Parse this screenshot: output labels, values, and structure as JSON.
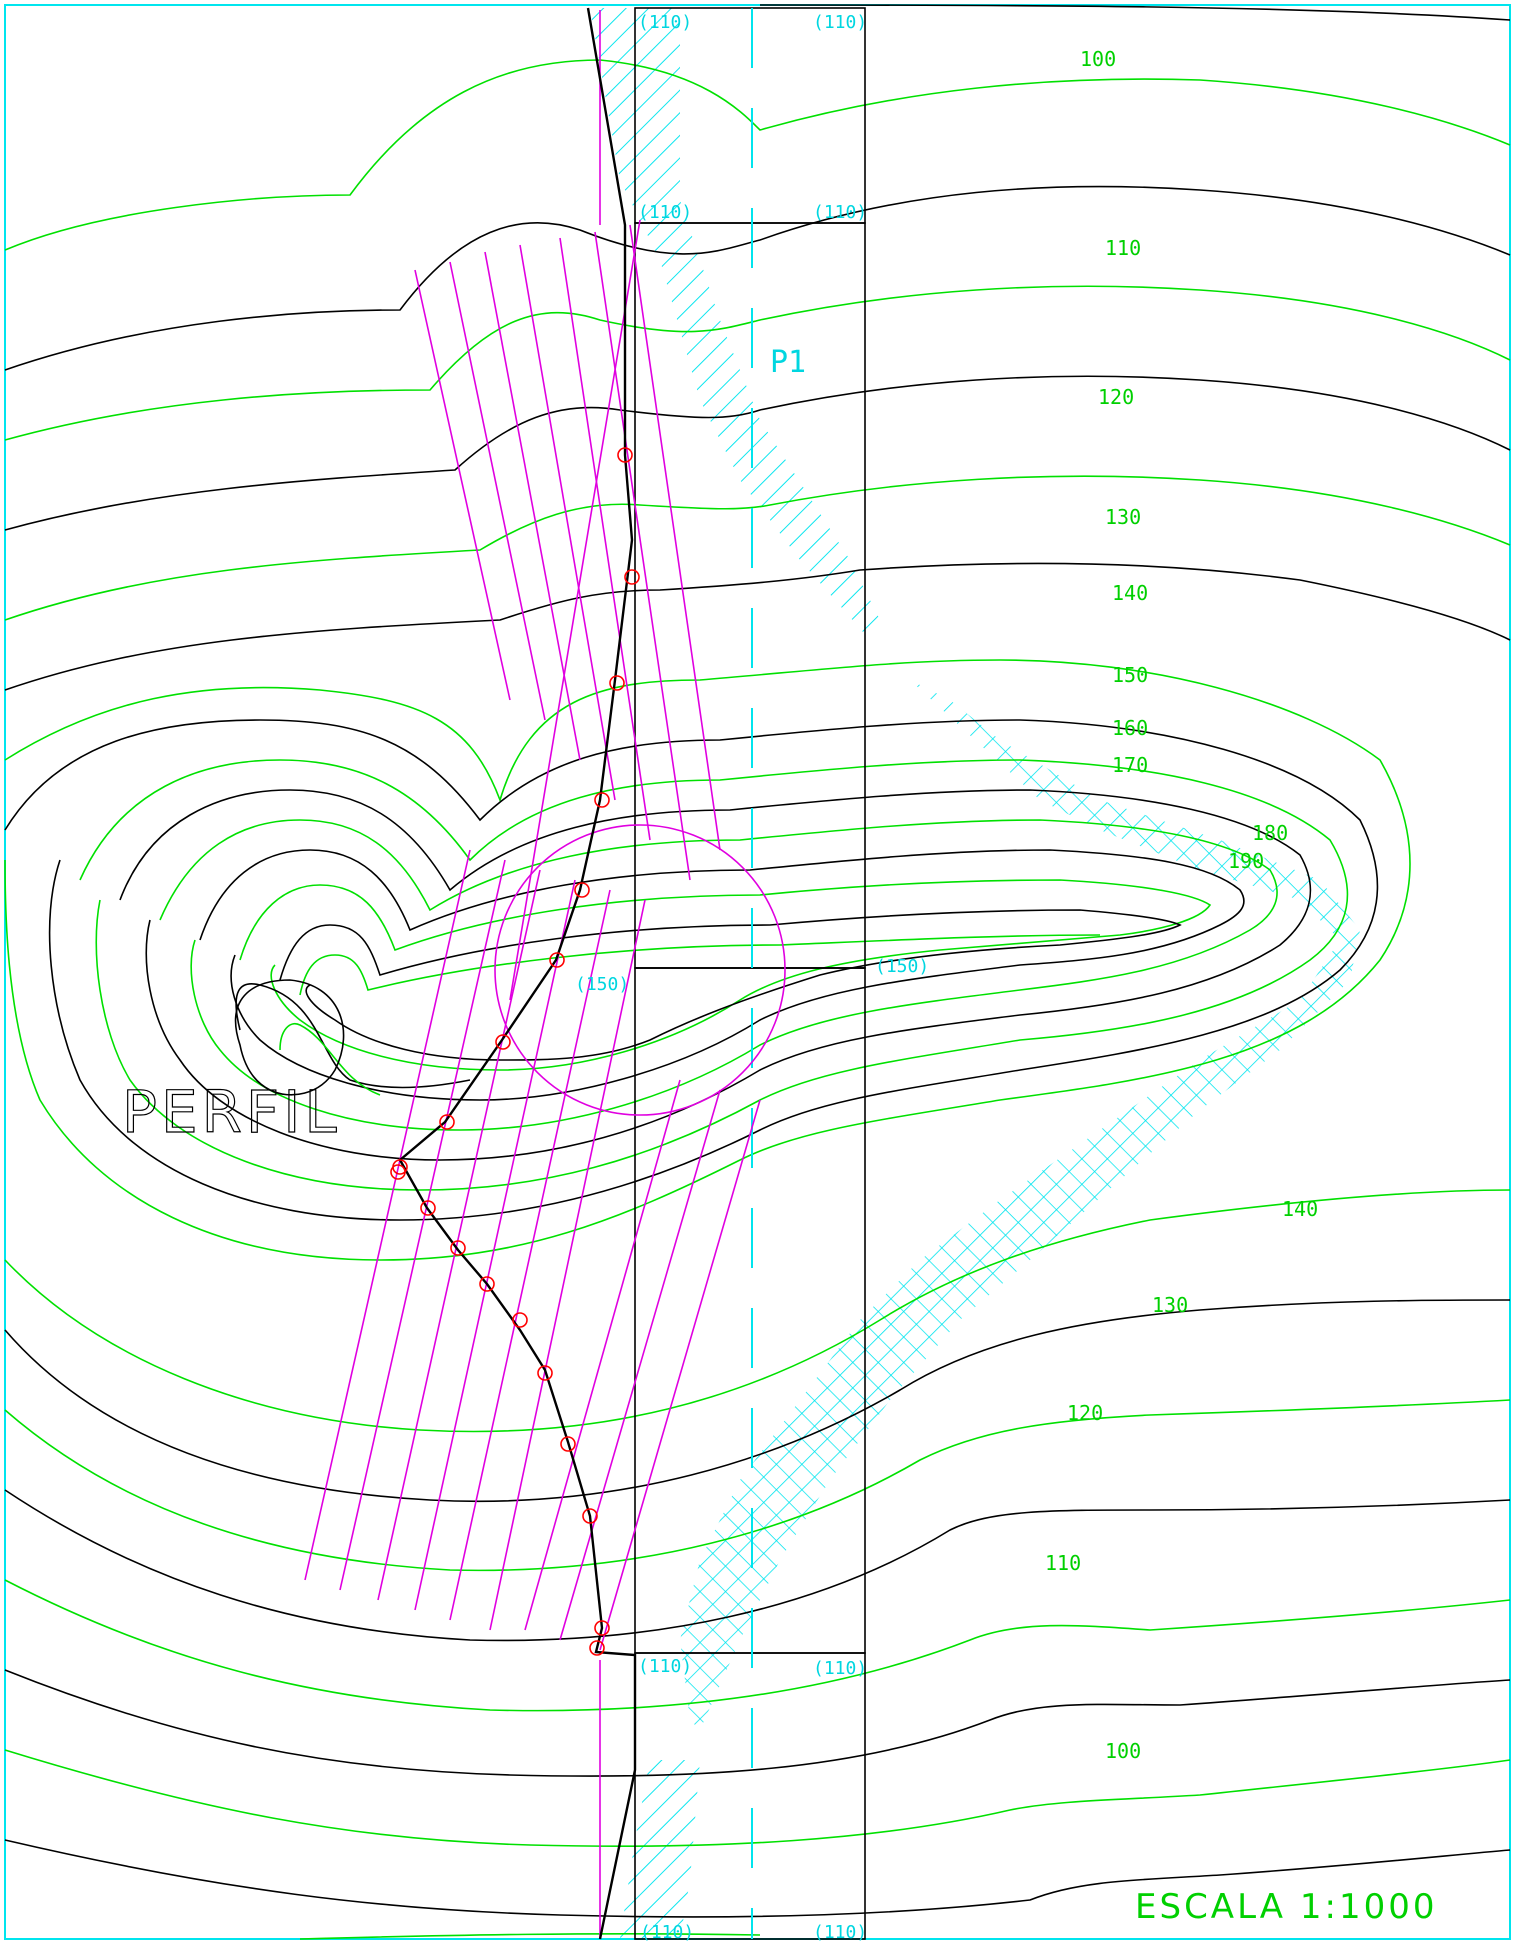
{
  "labels": {
    "perfil": "PERFIL",
    "escala": "ESCALA 1:1000",
    "p1": "P1",
    "road_level_110": "(110)",
    "road_level_150": "(150)"
  },
  "contour_labels": [
    "100",
    "110",
    "120",
    "130",
    "140",
    "150",
    "160",
    "170",
    "180",
    "190",
    "140",
    "130",
    "120",
    "110",
    "100"
  ],
  "colors": {
    "frame": "#00e5ee",
    "major_contour": "#00e000",
    "minor_contour": "#000000",
    "section_lines": "#e000e0",
    "profile_points": "#ff0000",
    "fill_hatch": "#00e5ee"
  }
}
